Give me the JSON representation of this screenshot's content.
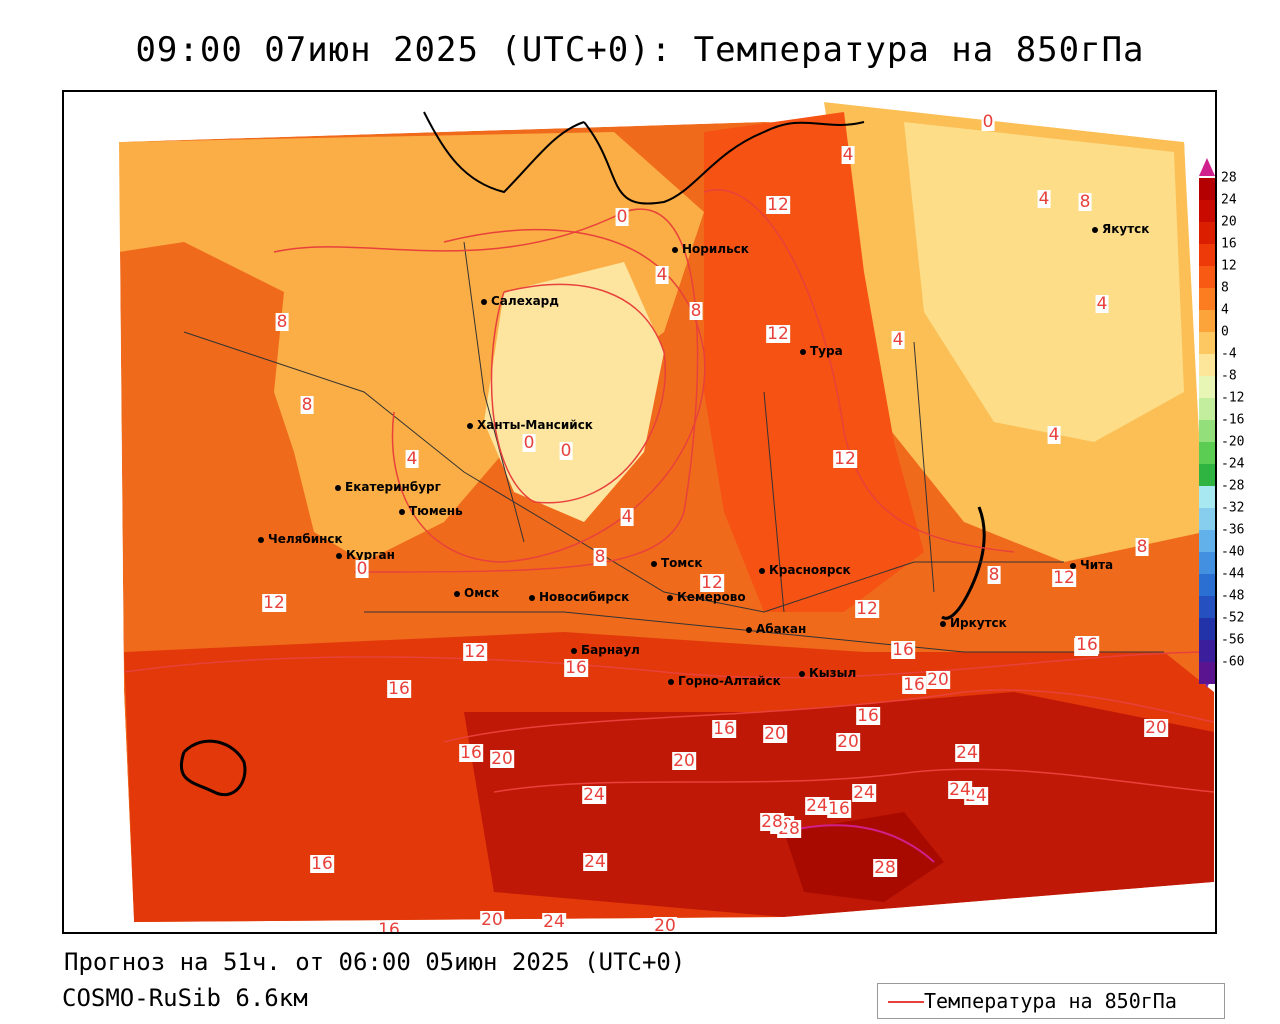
{
  "title": "09:00 07июн 2025 (UTC+0): Температура на 850гПа",
  "footer": {
    "forecast": "Прогноз на 51ч. от 06:00 05июн 2025 (UTC+0)",
    "model": "COSMO-RuSib 6.6км"
  },
  "legend": {
    "label": "Температура на 850гПа",
    "line_color": "#e8413b"
  },
  "colorbar": {
    "ticks": [
      "28",
      "24",
      "20",
      "16",
      "12",
      "8",
      "4",
      "0",
      "-4",
      "-8",
      "-12",
      "-16",
      "-20",
      "-24",
      "-28",
      "-32",
      "-36",
      "-40",
      "-44",
      "-48",
      "-52",
      "-56",
      "-60"
    ],
    "colors": [
      "#b40000",
      "#c80a00",
      "#dc1e00",
      "#ee3a08",
      "#f85a14",
      "#fb7d1f",
      "#fca43a",
      "#fdc862",
      "#fde69a",
      "#e7f6b4",
      "#c2ee9e",
      "#93df7c",
      "#5ccd53",
      "#2fb442",
      "#a8e8f0",
      "#86cdee",
      "#63b1ea",
      "#4390e0",
      "#2c6fd2",
      "#2550c0",
      "#2232a8",
      "#3a1e9c",
      "#5a1490"
    ],
    "top_tip_color": "#d0208c",
    "bottom_tip_color": "#7a2ab8"
  },
  "cities": [
    {
      "name": "Норильск"
    },
    {
      "name": "Салехард"
    },
    {
      "name": "Якутск"
    },
    {
      "name": "Тура"
    },
    {
      "name": "Ханты-Мансийск"
    },
    {
      "name": "Екатеринбург"
    },
    {
      "name": "Тюмень"
    },
    {
      "name": "Челябинск"
    },
    {
      "name": "Курган"
    },
    {
      "name": "Омск"
    },
    {
      "name": "Томск"
    },
    {
      "name": "Новосибирск"
    },
    {
      "name": "Кемерово"
    },
    {
      "name": "Красноярск"
    },
    {
      "name": "Барнаул"
    },
    {
      "name": "Абакан"
    },
    {
      "name": "Иркутск"
    },
    {
      "name": "Чита"
    },
    {
      "name": "Горно-Алтайск"
    },
    {
      "name": "Кызыл"
    }
  ],
  "contour_labels": [
    "0",
    "0",
    "0",
    "0",
    "0",
    "4",
    "4",
    "4",
    "4",
    "4",
    "4",
    "4",
    "4",
    "8",
    "8",
    "8",
    "8",
    "8",
    "8",
    "8",
    "12",
    "12",
    "12",
    "12",
    "12",
    "12",
    "12",
    "12",
    "12",
    "16",
    "16",
    "16",
    "16",
    "16",
    "16",
    "16",
    "16",
    "16",
    "16",
    "16",
    "20",
    "20",
    "20",
    "20",
    "20",
    "20",
    "20",
    "20",
    "20",
    "24",
    "24",
    "24",
    "24",
    "24",
    "24",
    "24",
    "24",
    "28",
    "28",
    "28"
  ]
}
